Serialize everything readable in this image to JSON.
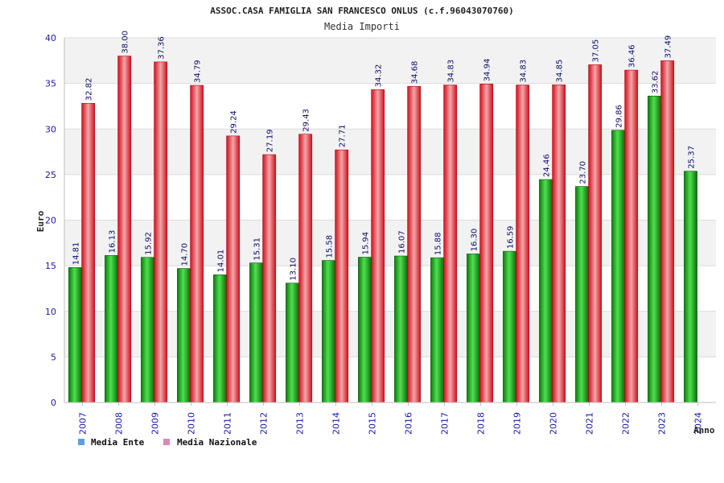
{
  "title": "ASSOC.CASA FAMIGLIA SAN FRANCESCO ONLUS (c.f.96043070760)",
  "subtitle": "Media Importi",
  "chart_data": {
    "type": "bar",
    "xlabel": "Anno",
    "ylabel": "Euro",
    "ylim": [
      0,
      40
    ],
    "yticks": [
      0,
      5,
      10,
      15,
      20,
      25,
      30,
      35,
      40
    ],
    "grid": true,
    "legend_position": "bottom-left",
    "categories": [
      "2007",
      "2008",
      "2009",
      "2010",
      "2011",
      "2012",
      "2013",
      "2014",
      "2015",
      "2016",
      "2017",
      "2018",
      "2019",
      "2020",
      "2021",
      "2022",
      "2023",
      "2024"
    ],
    "series": [
      {
        "name": "Media Ente",
        "color": "#1fa81f",
        "values": [
          14.81,
          16.13,
          15.92,
          14.7,
          14.01,
          15.31,
          13.1,
          15.58,
          15.94,
          16.07,
          15.88,
          16.3,
          16.59,
          24.46,
          23.7,
          29.86,
          33.62,
          25.37
        ],
        "labels": [
          "14.81",
          "16.13",
          "15.92",
          "14.70",
          "14.01",
          "15.31",
          "13.10",
          "15.58",
          "15.94",
          "16.07",
          "15.88",
          "16.30",
          "16.59",
          "24.46",
          "23.70",
          "29.86",
          "33.62",
          "25.37"
        ]
      },
      {
        "name": "Media Nazionale",
        "color": "#e8232f",
        "values": [
          32.82,
          38.0,
          37.36,
          34.79,
          29.24,
          27.19,
          29.43,
          27.71,
          34.32,
          34.68,
          34.83,
          34.94,
          34.83,
          34.85,
          37.05,
          36.46,
          37.49,
          null
        ],
        "labels": [
          "32.82",
          "38.00",
          "37.36",
          "34.79",
          "29.24",
          "27.19",
          "29.43",
          "27.71",
          "34.32",
          "34.68",
          "34.83",
          "34.94",
          "34.83",
          "34.85",
          "37.05",
          "36.46",
          "37.49",
          ""
        ]
      }
    ],
    "legend": [
      {
        "name": "Media Ente",
        "swatch": "#5aa0e6"
      },
      {
        "name": "Media Nazionale",
        "swatch": "#d98ab9"
      }
    ]
  }
}
